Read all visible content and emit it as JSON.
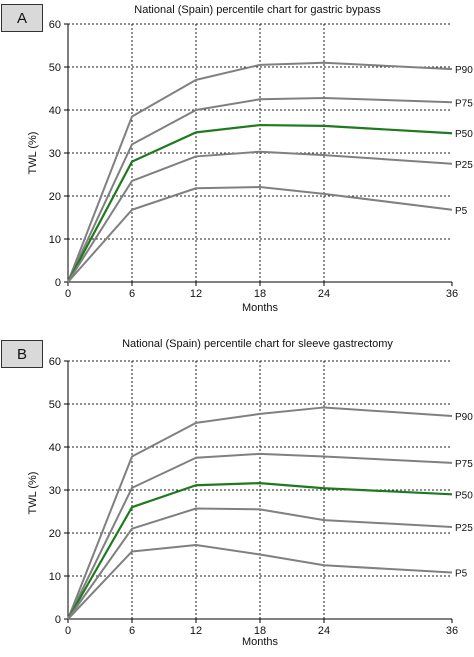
{
  "panels": [
    {
      "label": "A",
      "chart_data": {
        "type": "line",
        "title": "National (Spain) percentile chart for gastric bypass",
        "xlabel": "Months",
        "ylabel": "TWL (%)",
        "x": [
          0,
          6,
          12,
          18,
          24,
          36
        ],
        "x_ticks": [
          "0",
          "6",
          "12",
          "18",
          "24",
          "36"
        ],
        "xlim": [
          0,
          36
        ],
        "ylim": [
          0,
          60
        ],
        "y_ticks": [
          "0",
          "10",
          "20",
          "30",
          "40",
          "50",
          "60"
        ],
        "grid": true,
        "series": [
          {
            "name": "P90",
            "label": "P90",
            "values": [
              0,
              38.5,
              47,
              50.5,
              51,
              49.5
            ],
            "color": "#808080"
          },
          {
            "name": "P75",
            "label": "P75",
            "values": [
              0,
              32,
              40,
              42.5,
              42.8,
              41.8
            ],
            "color": "#808080"
          },
          {
            "name": "P50",
            "label": "P50",
            "values": [
              0,
              28,
              34.8,
              36.5,
              36.3,
              34.6
            ],
            "color": "#1f7a1f"
          },
          {
            "name": "P25",
            "label": "P25",
            "values": [
              0,
              23.5,
              29.2,
              30.3,
              29.5,
              27.5
            ],
            "color": "#808080"
          },
          {
            "name": "P5",
            "label": "P5",
            "values": [
              0,
              16.8,
              21.8,
              22.1,
              20.5,
              16.8
            ],
            "color": "#808080"
          }
        ]
      }
    },
    {
      "label": "B",
      "chart_data": {
        "type": "line",
        "title": "National (Spain) percentile chart for sleeve gastrectomy",
        "xlabel": "Months",
        "ylabel": "TWL (%)",
        "x": [
          0,
          6,
          12,
          18,
          24,
          36
        ],
        "x_ticks": [
          "0",
          "6",
          "12",
          "18",
          "24",
          "36"
        ],
        "xlim": [
          0,
          36
        ],
        "ylim": [
          0,
          60
        ],
        "y_ticks": [
          "0",
          "10",
          "20",
          "30",
          "40",
          "50",
          "60"
        ],
        "grid": true,
        "series": [
          {
            "name": "P90",
            "label": "P90",
            "values": [
              0,
              37.8,
              45.6,
              47.7,
              49.2,
              47.2
            ],
            "color": "#808080"
          },
          {
            "name": "P75",
            "label": "P75",
            "values": [
              0,
              30.5,
              37.5,
              38.4,
              37.8,
              36.3
            ],
            "color": "#808080"
          },
          {
            "name": "P50",
            "label": "P50",
            "values": [
              0,
              26,
              31.1,
              31.6,
              30.4,
              29
            ],
            "color": "#1f7a1f"
          },
          {
            "name": "P25",
            "label": "P25",
            "values": [
              0,
              21,
              25.7,
              25.5,
              23,
              21.4
            ],
            "color": "#808080"
          },
          {
            "name": "P5",
            "label": "P5",
            "values": [
              0,
              15.7,
              17.2,
              15,
              12.5,
              10.8
            ],
            "color": "#808080"
          }
        ]
      }
    }
  ]
}
